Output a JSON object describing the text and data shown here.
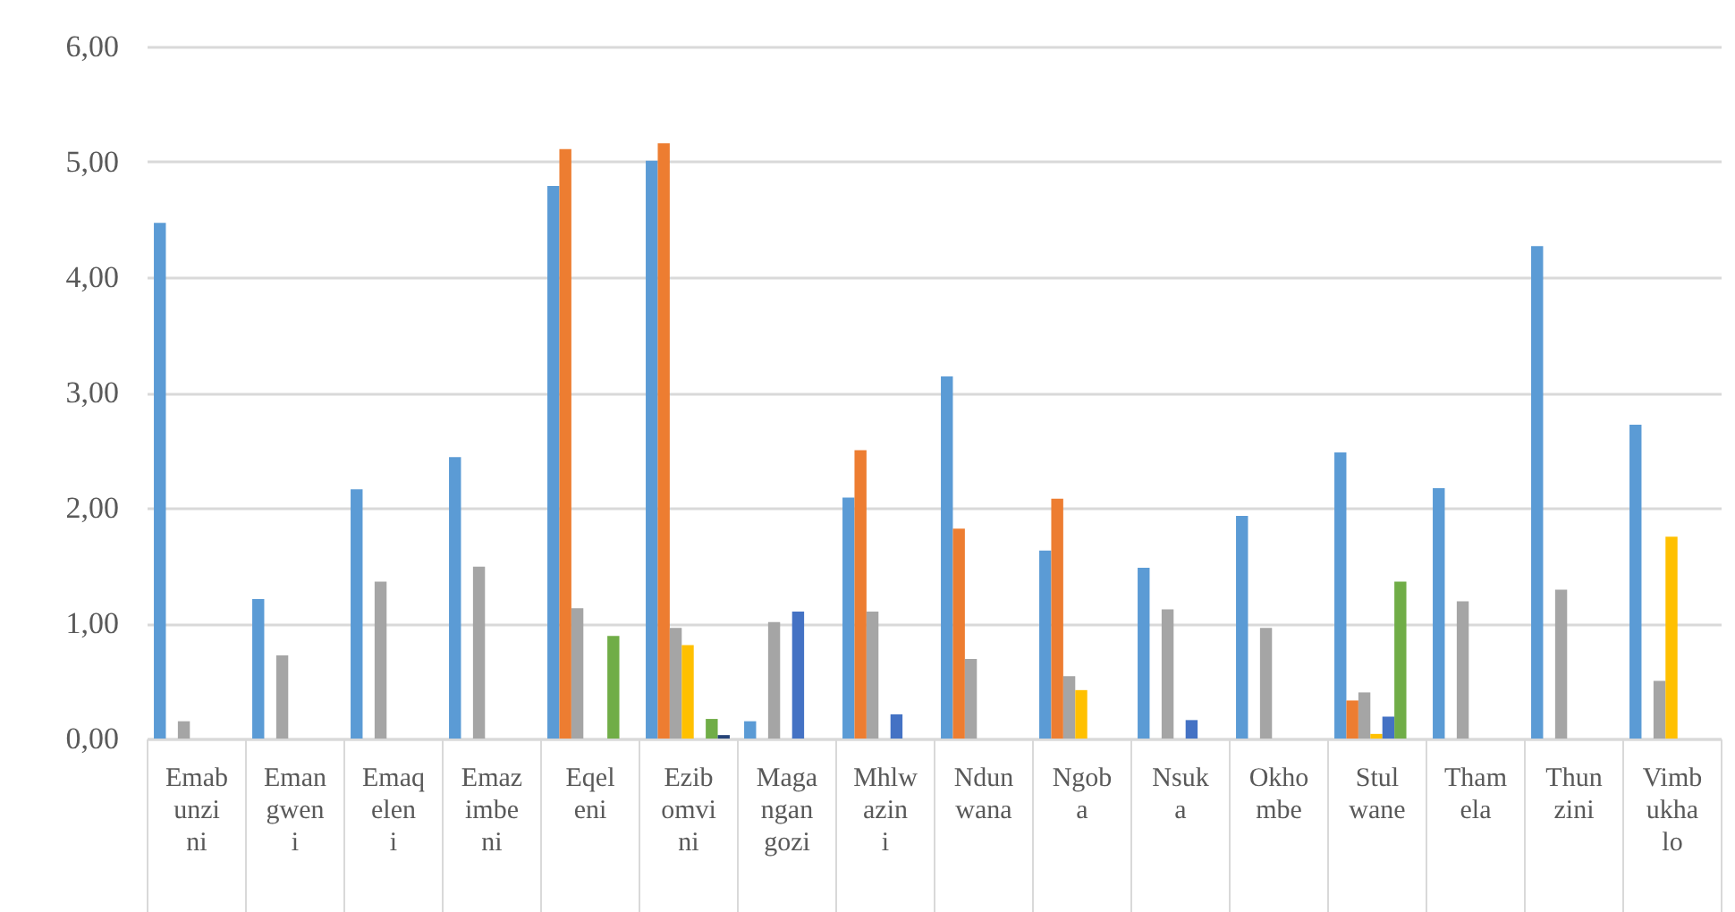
{
  "chart_data": {
    "type": "bar",
    "categories": [
      "Emabunzini",
      "Emangweni",
      "Emaqeleni",
      "Emazimbeni",
      "Eqeleni",
      "Ezibomvini",
      "Magangangozi",
      "Mhlwazini",
      "Ndunwana",
      "Ngoba",
      "Nsuka",
      "Okhombe",
      "Stulwane",
      "Thamela",
      "Thunzini",
      "Vimbukhalo"
    ],
    "series": [
      {
        "color": "#5b9bd5",
        "values": [
          4.47,
          1.21,
          2.16,
          2.44,
          4.79,
          5.01,
          0.15,
          2.09,
          3.14,
          1.63,
          1.48,
          1.93,
          2.48,
          2.17,
          4.27,
          2.72
        ]
      },
      {
        "color": "#ed7d31",
        "values": [
          null,
          null,
          null,
          null,
          5.11,
          5.16,
          null,
          2.5,
          1.82,
          2.08,
          null,
          null,
          0.33,
          null,
          null,
          null
        ]
      },
      {
        "color": "#a5a5a5",
        "values": [
          0.15,
          0.72,
          1.36,
          1.49,
          1.13,
          0.96,
          1.01,
          1.1,
          0.69,
          0.54,
          1.12,
          0.96,
          0.4,
          1.19,
          1.29,
          0.5
        ]
      },
      {
        "color": "#ffc000",
        "values": [
          null,
          null,
          null,
          null,
          null,
          0.81,
          null,
          null,
          null,
          0.42,
          null,
          null,
          0.04,
          null,
          null,
          1.75
        ]
      },
      {
        "color": "#4472c4",
        "values": [
          null,
          null,
          null,
          null,
          null,
          null,
          1.1,
          0.21,
          null,
          null,
          0.16,
          null,
          0.19,
          null,
          null,
          null
        ]
      },
      {
        "color": "#70ad47",
        "values": [
          null,
          null,
          null,
          null,
          0.89,
          0.17,
          null,
          null,
          null,
          null,
          null,
          null,
          1.36,
          null,
          null,
          null
        ]
      },
      {
        "color": "#264478",
        "values": [
          null,
          null,
          null,
          null,
          null,
          0.03,
          null,
          null,
          null,
          null,
          null,
          null,
          null,
          null,
          null,
          null
        ]
      }
    ],
    "ylim": [
      0,
      6
    ],
    "yticks": [
      {
        "value": 0,
        "label": "0,00"
      },
      {
        "value": 1,
        "label": "1,00"
      },
      {
        "value": 2,
        "label": "2,00"
      },
      {
        "value": 3,
        "label": "3,00"
      },
      {
        "value": 4,
        "label": "4,00"
      },
      {
        "value": 5,
        "label": "5,00"
      },
      {
        "value": 6,
        "label": "6,00"
      }
    ],
    "grid": "y",
    "legend": false
  }
}
